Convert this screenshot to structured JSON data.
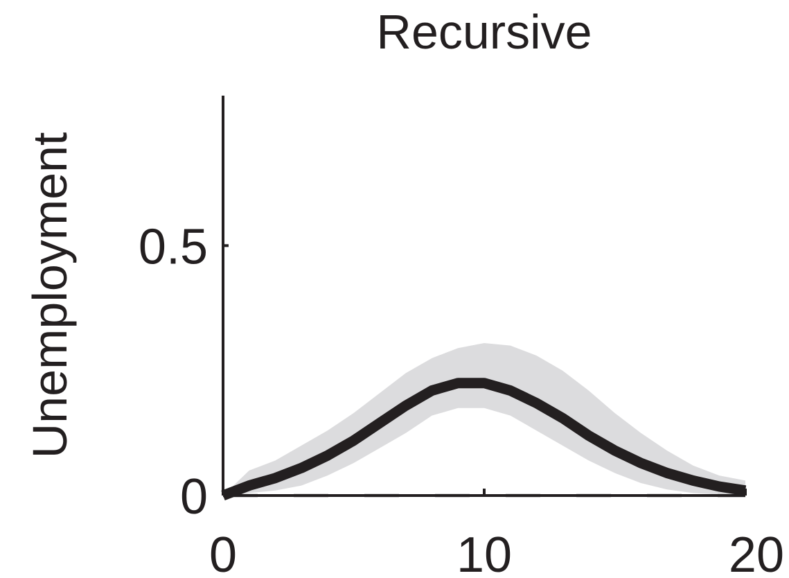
{
  "chart_data": {
    "type": "line",
    "title": "Recursive",
    "xlabel": "",
    "ylabel": "Unemployment",
    "xlim": [
      0,
      20
    ],
    "ylim": [
      0,
      0.8
    ],
    "x_ticks": [
      0,
      10,
      20
    ],
    "x_tick_labels": [
      "0",
      "10",
      "20"
    ],
    "y_ticks": [
      0,
      0.5
    ],
    "y_tick_labels": [
      "0",
      "0.5"
    ],
    "grid": false,
    "legend": "none",
    "x": [
      0,
      1,
      2,
      3,
      4,
      5,
      6,
      7,
      8,
      9,
      10,
      11,
      12,
      13,
      14,
      15,
      16,
      17,
      18,
      19,
      20
    ],
    "series": [
      {
        "role": "median",
        "values": [
          0.0,
          0.02,
          0.035,
          0.055,
          0.08,
          0.11,
          0.145,
          0.18,
          0.21,
          0.225,
          0.225,
          0.21,
          0.185,
          0.155,
          0.12,
          0.09,
          0.065,
          0.045,
          0.03,
          0.018,
          0.01
        ]
      },
      {
        "role": "band_upper",
        "values": [
          0.0,
          0.05,
          0.07,
          0.1,
          0.13,
          0.165,
          0.205,
          0.245,
          0.275,
          0.295,
          0.305,
          0.3,
          0.28,
          0.25,
          0.21,
          0.165,
          0.125,
          0.09,
          0.06,
          0.04,
          0.03
        ]
      },
      {
        "role": "band_lower",
        "values": [
          0.0,
          0.005,
          0.01,
          0.02,
          0.04,
          0.065,
          0.095,
          0.125,
          0.16,
          0.175,
          0.175,
          0.16,
          0.13,
          0.1,
          0.07,
          0.045,
          0.025,
          0.012,
          0.005,
          0.002,
          0.0
        ]
      }
    ],
    "zero_line": 0,
    "colors": {
      "line": "#231f20",
      "band": "#dcdcde",
      "zero_line": "#b0b0b0",
      "axis": "#231f20"
    }
  }
}
